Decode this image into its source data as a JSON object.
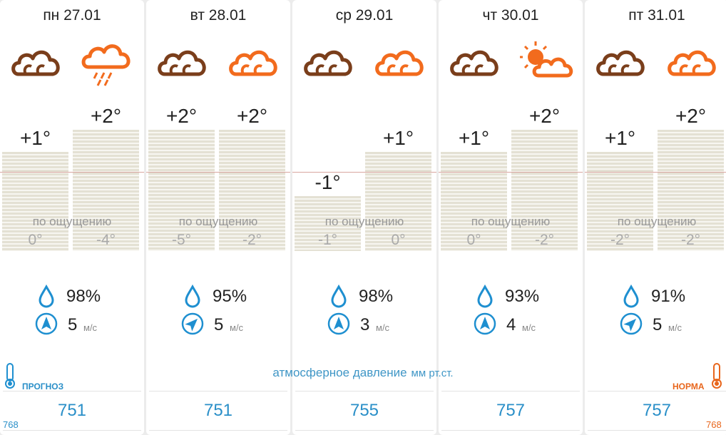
{
  "days": [
    {
      "label": "пн 27.01",
      "icons": [
        "cloudy-icon",
        "rain-cloud-icon"
      ],
      "temps": [
        "+1°",
        "+2°"
      ],
      "feels": [
        "0°",
        "-4°"
      ],
      "humidity": "98%",
      "wind": "5",
      "pressure": "751"
    },
    {
      "label": "вт 28.01",
      "icons": [
        "cloudy-icon",
        "cloudy-icon"
      ],
      "temps": [
        "+2°",
        "+2°"
      ],
      "feels": [
        "-5°",
        "-2°"
      ],
      "humidity": "95%",
      "wind": "5",
      "pressure": "751"
    },
    {
      "label": "ср 29.01",
      "icons": [
        "cloudy-icon",
        "cloudy-icon"
      ],
      "temps": [
        "-1°",
        "+1°"
      ],
      "feels": [
        "-1°",
        "0°"
      ],
      "humidity": "98%",
      "wind": "3",
      "pressure": "755"
    },
    {
      "label": "чт 30.01",
      "icons": [
        "cloudy-icon",
        "sun-cloud-icon"
      ],
      "temps": [
        "+1°",
        "+2°"
      ],
      "feels": [
        "0°",
        "-2°"
      ],
      "humidity": "93%",
      "wind": "4",
      "pressure": "757"
    },
    {
      "label": "пт 31.01",
      "icons": [
        "cloudy-icon",
        "cloudy-icon"
      ],
      "temps": [
        "+1°",
        "+2°"
      ],
      "feels": [
        "-2°",
        "-2°"
      ],
      "humidity": "91%",
      "wind": "5",
      "pressure": "757"
    }
  ],
  "labels": {
    "feels_like": "по ощущению",
    "wind_unit": "м/с",
    "pressure_caption": "атмосферное давление",
    "pressure_unit": "мм рт.ст.",
    "forecast_badge": "ПРОГНОЗ",
    "norm_badge": "НОРМА",
    "forecast_pressure": "768",
    "norm_pressure": "768"
  },
  "colors": {
    "night_icon": "#7a3e1b",
    "day_icon": "#f26b1d",
    "metric_blue": "#1e8fd0",
    "forecast_blue": "#2a8fc8",
    "norm_orange": "#e8661c"
  }
}
